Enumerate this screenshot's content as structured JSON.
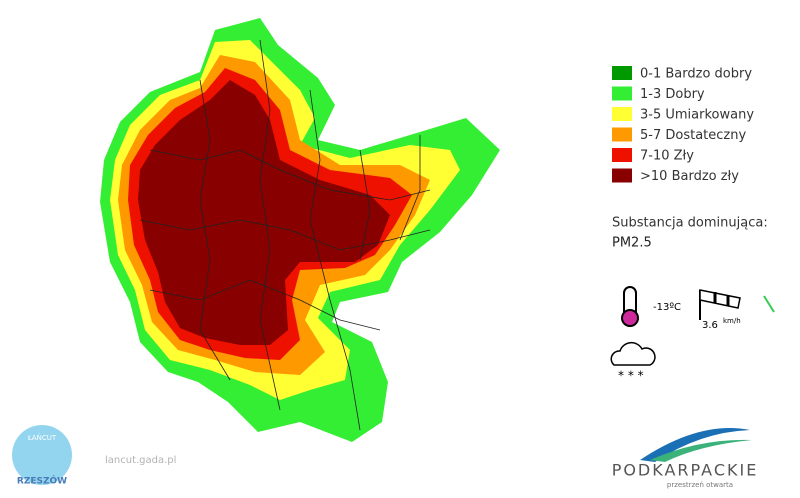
{
  "legend": {
    "items": [
      {
        "label": "0-1 Bardzo dobry",
        "color": "#009a00"
      },
      {
        "label": "1-3 Dobry",
        "color": "#33ee33"
      },
      {
        "label": "3-5 Umiarkowany",
        "color": "#ffff33"
      },
      {
        "label": "5-7 Dostateczny",
        "color": "#ff9900"
      },
      {
        "label": "7-10 Zły",
        "color": "#ee1100"
      },
      {
        "label": ">10 Bardzo zły",
        "color": "#880000"
      }
    ]
  },
  "info": {
    "substance_label": "Substancja dominująca:",
    "substance": "PM2.5"
  },
  "weather": {
    "temperature": "-13ºC",
    "wind_speed": "3.6",
    "wind_unit": "km/h"
  },
  "logo": {
    "name": "PODKARPACKIE",
    "tagline": "przestrzeń otwarta"
  },
  "watermark": {
    "top": "ŁAŃCUT",
    "url": "lancut.gada.pl",
    "city": "RZESZÓW"
  }
}
